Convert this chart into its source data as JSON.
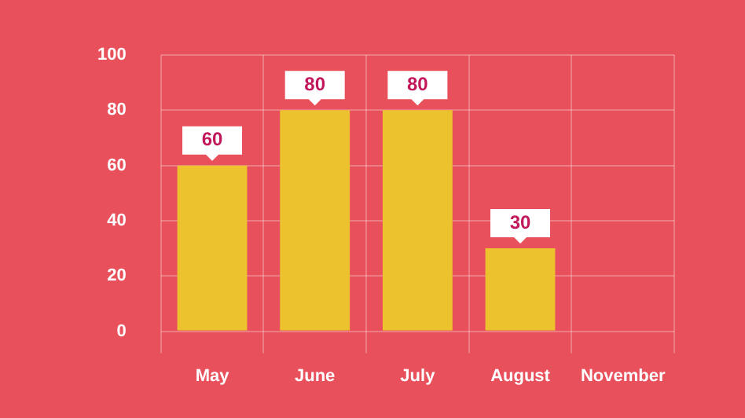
{
  "chart_data": {
    "type": "bar",
    "categories": [
      "May",
      "June",
      "July",
      "August",
      "November"
    ],
    "values": [
      60,
      80,
      80,
      30,
      null
    ],
    "color": "#ecc22e",
    "ylim": [
      0,
      100
    ],
    "yticks": [
      0,
      20,
      40,
      60,
      80,
      100
    ],
    "grid": true,
    "data_labels": true
  }
}
